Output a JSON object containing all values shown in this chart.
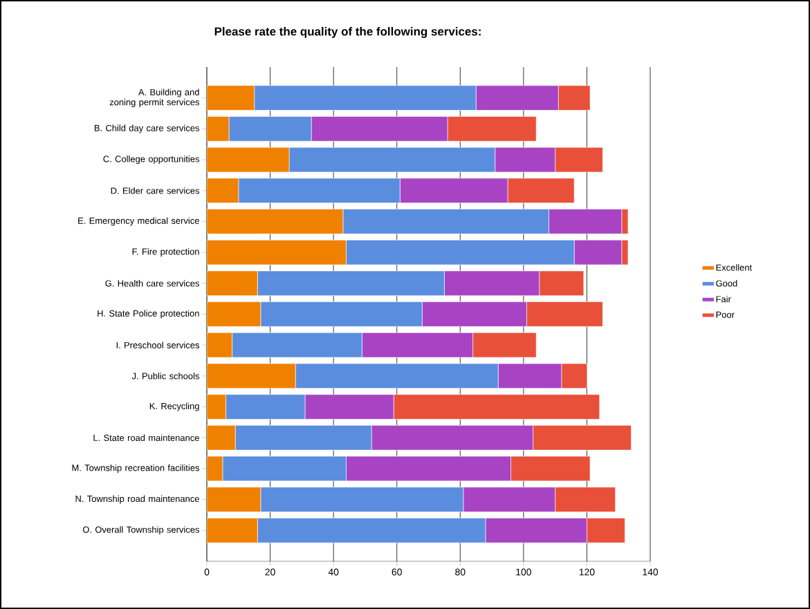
{
  "chart_data": {
    "type": "bar",
    "orientation": "horizontal",
    "stacked": true,
    "title": "Please rate the quality of the following services:",
    "categories": [
      "A. Building and zoning permit services",
      "B. Child day care services",
      "C. College opportunities",
      "D. Elder care services",
      "E. Emergency medical service",
      "F. Fire protection",
      "G. Health care services",
      "H. State Police protection",
      "I. Preschool services",
      "J. Public schools",
      "K. Recycling",
      "L. State road maintenance",
      "M. Township recreation facilities",
      "N. Township road maintenance",
      "O. Overall Township services"
    ],
    "series": [
      {
        "name": "Excellent",
        "color": "#f08000",
        "values": [
          15,
          7,
          26,
          10,
          43,
          44,
          16,
          17,
          8,
          28,
          6,
          9,
          5,
          17,
          16
        ]
      },
      {
        "name": "Good",
        "color": "#5b8ddf",
        "values": [
          70,
          26,
          65,
          51,
          65,
          72,
          59,
          51,
          41,
          64,
          25,
          43,
          39,
          64,
          72
        ]
      },
      {
        "name": "Fair",
        "color": "#a844c4",
        "values": [
          26,
          43,
          19,
          34,
          23,
          15,
          30,
          33,
          35,
          20,
          28,
          51,
          52,
          29,
          32
        ]
      },
      {
        "name": "Poor",
        "color": "#e8503a",
        "values": [
          10,
          28,
          15,
          21,
          2,
          2,
          14,
          24,
          20,
          8,
          65,
          31,
          25,
          19,
          12
        ]
      }
    ],
    "xlim": [
      0,
      140
    ],
    "xticks": [
      0,
      20,
      40,
      60,
      80,
      100,
      120,
      140
    ],
    "grid": "x",
    "legend": "right"
  }
}
